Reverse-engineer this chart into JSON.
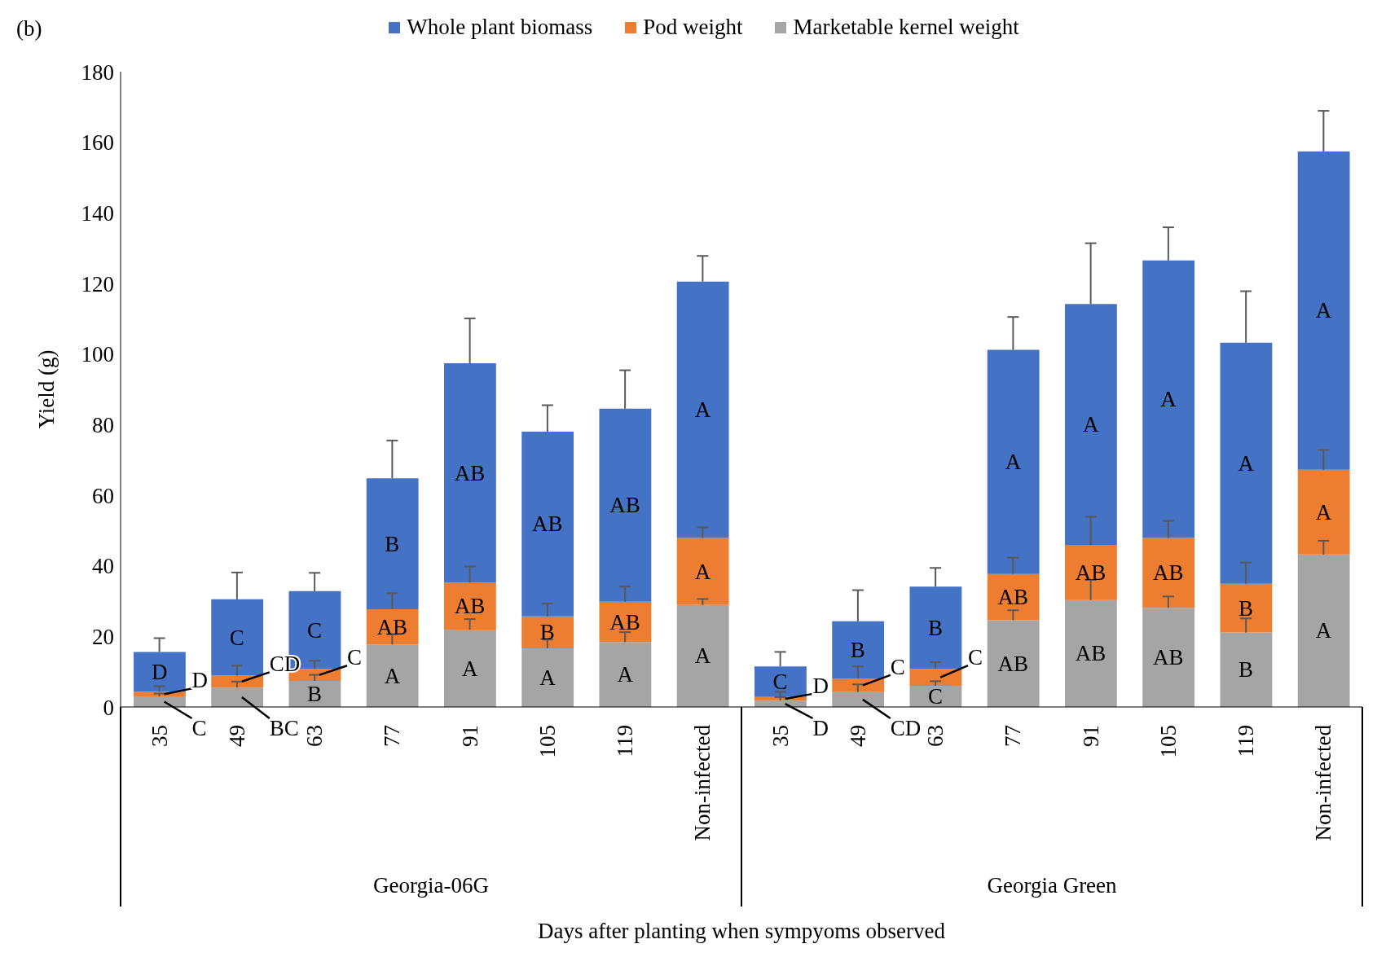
{
  "chart_data": {
    "type": "bar",
    "title": "(b)",
    "xlabel": "Days after planting when sympyoms observed",
    "ylabel": "Yield (g)",
    "stacked": true,
    "legend": "top",
    "grid": false,
    "categories": [
      "35",
      "49",
      "63",
      "77",
      "91",
      "105",
      "119",
      "Non-infected",
      "35",
      "49",
      "63",
      "77",
      "91",
      "105",
      "119",
      "Non-infected"
    ],
    "annotations": [
      "Georgia-06G",
      "Georgia Green"
    ],
    "ylim": [
      0,
      180
    ],
    "yticks": [
      0,
      20,
      40,
      60,
      80,
      100,
      120,
      140,
      160,
      180
    ],
    "series": [
      {
        "name": "Marketable kernel weight",
        "color": "#a5a5a5",
        "values": [
          3.0,
          5.5,
          7.4,
          17.7,
          21.9,
          16.6,
          18.4,
          28.9,
          1.8,
          4.2,
          6.0,
          24.6,
          30.3,
          28.1,
          21.1,
          43.2
        ],
        "errors": [
          [
            3.0,
            3.8
          ],
          [
            5.5,
            7.2
          ],
          [
            7.4,
            9.1
          ],
          [
            17.7,
            20.6
          ],
          [
            21.9,
            24.9
          ],
          [
            16.6,
            19.1
          ],
          [
            18.4,
            21.2
          ],
          [
            28.9,
            30.6
          ],
          [
            1.8,
            2.8
          ],
          [
            4.2,
            6.4
          ],
          [
            6.0,
            7.3
          ],
          [
            24.6,
            27.4
          ],
          [
            30.3,
            36.0
          ],
          [
            28.1,
            31.3
          ],
          [
            21.1,
            25.1
          ],
          [
            43.2,
            47.1
          ]
        ],
        "value_labels": [
          "C",
          "BC",
          "B",
          "A",
          "A",
          "A",
          "A",
          "A",
          "D",
          "CD",
          "C",
          "AB",
          "AB",
          "AB",
          "B",
          "A"
        ]
      },
      {
        "name": "Pod weight",
        "color": "#ed7d31",
        "values": [
          1.3,
          3.4,
          3.4,
          10.0,
          13.3,
          9.1,
          11.4,
          19.0,
          1.0,
          3.9,
          4.8,
          13.1,
          15.6,
          19.8,
          13.8,
          24.0
        ],
        "errors": [
          [
            4.3,
            5.9
          ],
          [
            8.9,
            11.7
          ],
          [
            10.8,
            13.1
          ],
          [
            27.7,
            32.2
          ],
          [
            35.2,
            39.8
          ],
          [
            25.7,
            29.3
          ],
          [
            29.8,
            34.1
          ],
          [
            47.9,
            50.9
          ],
          [
            2.8,
            4.3
          ],
          [
            8.1,
            11.5
          ],
          [
            10.8,
            12.7
          ],
          [
            37.7,
            42.3
          ],
          [
            45.9,
            53.9
          ],
          [
            47.9,
            52.7
          ],
          [
            34.9,
            40.9
          ],
          [
            67.2,
            72.8
          ]
        ],
        "value_labels": [
          "D",
          "CD",
          "C",
          "AB",
          "AB",
          "B",
          "AB",
          "A",
          "D",
          "C",
          "C",
          "AB",
          "AB",
          "AB",
          "B",
          "A"
        ]
      },
      {
        "name": "Whole plant biomass",
        "color": "#4472c4",
        "values": [
          11.3,
          21.6,
          22.0,
          37.1,
          62.2,
          52.3,
          54.7,
          72.6,
          8.7,
          16.2,
          23.3,
          63.5,
          68.3,
          78.6,
          68.3,
          90.2
        ],
        "errors": [
          [
            15.6,
            19.5
          ],
          [
            30.5,
            38.1
          ],
          [
            32.8,
            38.0
          ],
          [
            64.8,
            75.5
          ],
          [
            97.4,
            110.1
          ],
          [
            78.0,
            85.5
          ],
          [
            84.5,
            95.4
          ],
          [
            120.5,
            127.8
          ],
          [
            11.5,
            15.6
          ],
          [
            24.3,
            33.1
          ],
          [
            34.1,
            39.4
          ],
          [
            101.2,
            110.5
          ],
          [
            114.2,
            131.4
          ],
          [
            126.5,
            135.9
          ],
          [
            103.2,
            117.8
          ],
          [
            157.4,
            168.9
          ]
        ],
        "value_labels": [
          "D",
          "C",
          "C",
          "B",
          "AB",
          "AB",
          "AB",
          "A",
          "C",
          "B",
          "B",
          "A",
          "A",
          "A",
          "A",
          "A"
        ]
      }
    ]
  }
}
